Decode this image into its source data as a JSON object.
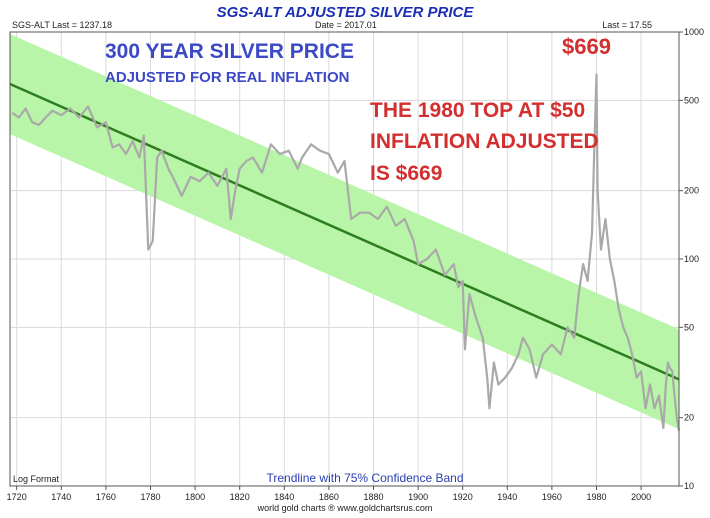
{
  "chart_data": {
    "type": "line",
    "title": "SGS-ALT ADJUSTED  SILVER PRICE",
    "header": {
      "left": "SGS-ALT Last = 1237.18",
      "center": "Date = 2017.01",
      "right": "Last = 17.55"
    },
    "y_scale": "log",
    "ylim": [
      10,
      1000
    ],
    "xlim": [
      1717,
      2017
    ],
    "x_ticks": [
      1720,
      1740,
      1760,
      1780,
      1800,
      1820,
      1840,
      1860,
      1880,
      1900,
      1920,
      1940,
      1960,
      1980,
      2000
    ],
    "x_tick_labels": [
      "1720",
      "1740",
      "1760",
      "1780",
      "1800",
      "1820",
      "1840",
      "1860",
      "1880",
      "1900",
      "1920",
      "1940",
      "1960",
      "1980",
      "2000"
    ],
    "y_ticks": [
      1000,
      500,
      200,
      100,
      50,
      20,
      10
    ],
    "y_tick_labels": [
      "1000",
      "500",
      "200",
      "100",
      "50",
      "20",
      "10"
    ],
    "grid": true,
    "series": [
      {
        "color": "#a9a9a9",
        "x": [
          1718,
          1721,
          1724,
          1727,
          1730,
          1733,
          1736,
          1740,
          1744,
          1748,
          1752,
          1756,
          1760,
          1763,
          1766,
          1769,
          1772,
          1775,
          1777,
          1779,
          1781,
          1783,
          1785,
          1788,
          1790,
          1794,
          1798,
          1802,
          1806,
          1810,
          1814,
          1816,
          1818,
          1820,
          1823,
          1826,
          1830,
          1834,
          1838,
          1842,
          1846,
          1848,
          1852,
          1856,
          1860,
          1864,
          1867,
          1870,
          1874,
          1878,
          1882,
          1886,
          1890,
          1894,
          1898,
          1900,
          1904,
          1908,
          1912,
          1916,
          1918,
          1920,
          1921,
          1923,
          1926,
          1929,
          1931,
          1932,
          1934,
          1936,
          1939,
          1942,
          1945,
          1947,
          1950,
          1953,
          1956,
          1960,
          1964,
          1967,
          1970,
          1972,
          1974,
          1976,
          1978,
          1979,
          1980,
          1980.5,
          1982,
          1984,
          1986,
          1988,
          1990,
          1992,
          1994,
          1996,
          1998,
          2000,
          2002,
          2004,
          2006,
          2008,
          2010,
          2011,
          2012,
          2013,
          2014,
          2015,
          2016,
          2017
        ],
        "values": [
          440,
          420,
          460,
          400,
          390,
          420,
          450,
          430,
          460,
          420,
          470,
          380,
          400,
          310,
          320,
          290,
          330,
          280,
          350,
          110,
          120,
          280,
          300,
          250,
          230,
          190,
          230,
          220,
          240,
          210,
          250,
          150,
          200,
          250,
          270,
          280,
          240,
          320,
          290,
          300,
          250,
          280,
          320,
          300,
          290,
          240,
          270,
          150,
          160,
          160,
          150,
          170,
          140,
          150,
          120,
          95,
          100,
          110,
          85,
          95,
          75,
          80,
          40,
          70,
          55,
          45,
          30,
          22,
          35,
          28,
          30,
          33,
          38,
          45,
          40,
          30,
          38,
          42,
          38,
          50,
          45,
          70,
          95,
          80,
          130,
          300,
          650,
          200,
          110,
          150,
          100,
          80,
          60,
          50,
          45,
          38,
          30,
          32,
          22,
          28,
          22,
          25,
          18,
          27,
          35,
          33,
          32,
          25,
          20,
          17.55
        ]
      }
    ],
    "trendline": {
      "start": [
        1717,
        590
      ],
      "end": [
        2017,
        29.5
      ],
      "color": "#2e7d1f"
    },
    "confidence_band": {
      "upper": [
        [
          1717,
          980
        ],
        [
          2017,
          49
        ]
      ],
      "lower": [
        [
          1717,
          355
        ],
        [
          2017,
          17.8
        ]
      ],
      "color": "#b8f5a8"
    },
    "annotations": {
      "headline": "300 YEAR SILVER PRICE",
      "subheadline": "ADJUSTED FOR REAL INFLATION",
      "peak_label": "$669",
      "note_line1": "THE 1980 TOP AT $50",
      "note_line2": "INFLATION ADJUSTED",
      "note_line3": "IS $669",
      "log_format": "Log Format",
      "band_caption": "Trendline with 75% Confidence Band",
      "footer": "world gold charts ® www.goldchartsrus.com"
    },
    "colors": {
      "title": "#1a2fb5",
      "headline": "#3b49c6",
      "note": "#d32f2f",
      "caption": "#2a3fb0",
      "grid": "#dadada",
      "frame": "#555555"
    }
  }
}
